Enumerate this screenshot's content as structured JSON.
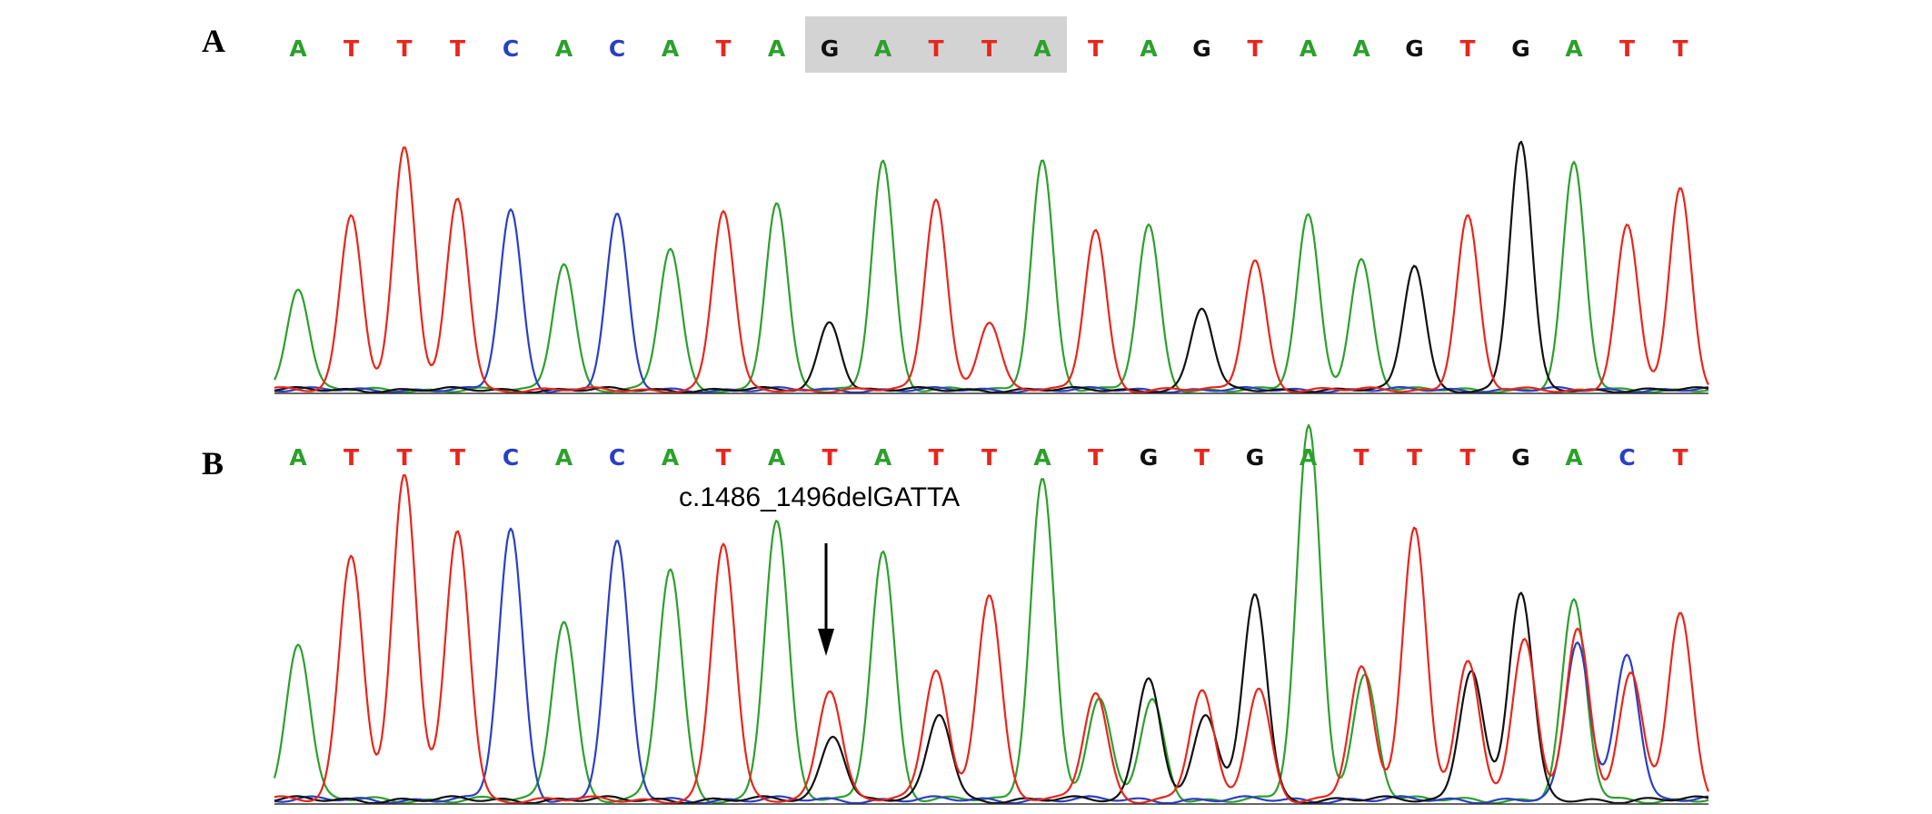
{
  "colors": {
    "A": "#2ca02c",
    "T": "#e8261c",
    "C": "#2b3fc4",
    "G": "#111111"
  },
  "highlight_color": "#d3d3d3",
  "panels": [
    {
      "label": "A",
      "bases": [
        "A",
        "T",
        "T",
        "T",
        "C",
        "A",
        "C",
        "A",
        "T",
        "A",
        "G",
        "A",
        "T",
        "T",
        "A",
        "T",
        "A",
        "G",
        "T",
        "A",
        "A",
        "G",
        "T",
        "G",
        "A",
        "T",
        "T"
      ],
      "highlight": [
        10,
        14
      ],
      "peak_heights": [
        0.4,
        0.69,
        0.95,
        0.75,
        0.7,
        0.5,
        0.68,
        0.55,
        0.7,
        0.73,
        0.27,
        0.9,
        0.75,
        0.27,
        0.9,
        0.63,
        0.64,
        0.32,
        0.51,
        0.68,
        0.51,
        0.49,
        0.68,
        0.97,
        0.88,
        0.64,
        0.78
      ],
      "secondary_peaks": []
    },
    {
      "label": "B",
      "bases": [
        "A",
        "T",
        "T",
        "T",
        "C",
        "A",
        "C",
        "A",
        "T",
        "A",
        "T",
        "A",
        "T",
        "T",
        "A",
        "T",
        "G",
        "T",
        "G",
        "A",
        "T",
        "T",
        "T",
        "G",
        "A",
        "C",
        "T"
      ],
      "highlight": null,
      "annotation": "c.1486_1496delGATTA",
      "arrow_target_index": 10,
      "peak_heights": [
        0.48,
        0.75,
        0.99,
        0.82,
        0.82,
        0.55,
        0.78,
        0.7,
        0.78,
        0.85,
        0.34,
        0.76,
        0.4,
        0.63,
        0.98,
        0.33,
        0.38,
        0.33,
        0.63,
        0.96,
        0.4,
        0.83,
        0.42,
        0.63,
        0.6,
        0.45,
        0.56
      ],
      "secondary_peaks": [
        {
          "index": 10,
          "base": "G",
          "height": 0.2
        },
        {
          "index": 12,
          "base": "G",
          "height": 0.26
        },
        {
          "index": 15,
          "base": "A",
          "height": 0.3
        },
        {
          "index": 16,
          "base": "A",
          "height": 0.3
        },
        {
          "index": 17,
          "base": "G",
          "height": 0.26
        },
        {
          "index": 18,
          "base": "T",
          "height": 0.34
        },
        {
          "index": 19,
          "base": "A",
          "height": 0.18
        },
        {
          "index": 20,
          "base": "A",
          "height": 0.38
        },
        {
          "index": 22,
          "base": "G",
          "height": 0.4
        },
        {
          "index": 23,
          "base": "T",
          "height": 0.48
        },
        {
          "index": 24,
          "base": "T",
          "height": 0.52
        },
        {
          "index": 24,
          "base": "C",
          "height": 0.48
        },
        {
          "index": 25,
          "base": "T",
          "height": 0.38
        }
      ]
    }
  ]
}
